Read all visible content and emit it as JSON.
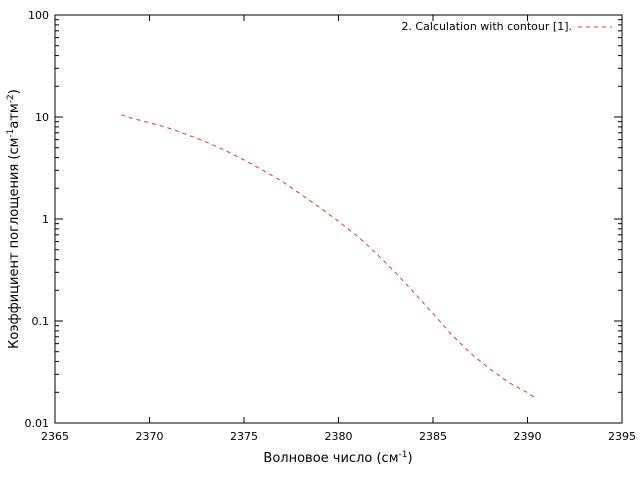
{
  "chart_data": {
    "type": "line",
    "x_scale": "linear",
    "y_scale": "log",
    "xlim": [
      2365,
      2395
    ],
    "ylim": [
      0.01,
      100
    ],
    "x_ticks": [
      2365,
      2370,
      2375,
      2380,
      2385,
      2390,
      2395
    ],
    "y_ticks": [
      0.01,
      0.1,
      1,
      10,
      100
    ],
    "y_tick_labels": [
      "0.01",
      "0.1",
      "1",
      "10",
      "100"
    ],
    "xlabel": {
      "text": "Волновое число (см",
      "sup": "-1",
      "end": ")"
    },
    "ylabel": {
      "text": "Коэффициент поглощения (см",
      "sup1": "-1",
      "mid": "атм",
      "sup2": "-2",
      "end": ")"
    },
    "grid": false,
    "legend": "top-right",
    "series": [
      {
        "name": "2. Calculation with contour [1].",
        "color": "#e8361e",
        "line_style": "dashed",
        "x": [
          2368.5,
          2369,
          2370,
          2371,
          2372,
          2373,
          2374,
          2375,
          2376,
          2377,
          2378,
          2379,
          2380,
          2381,
          2382,
          2383,
          2384,
          2385,
          2386,
          2387,
          2388,
          2389,
          2390,
          2390.5
        ],
        "y": [
          10.5,
          9.8,
          8.8,
          7.8,
          6.7,
          5.7,
          4.7,
          3.8,
          3.0,
          2.35,
          1.75,
          1.3,
          0.95,
          0.68,
          0.46,
          0.3,
          0.19,
          0.118,
          0.073,
          0.048,
          0.034,
          0.025,
          0.0198,
          0.0172
        ]
      }
    ]
  }
}
